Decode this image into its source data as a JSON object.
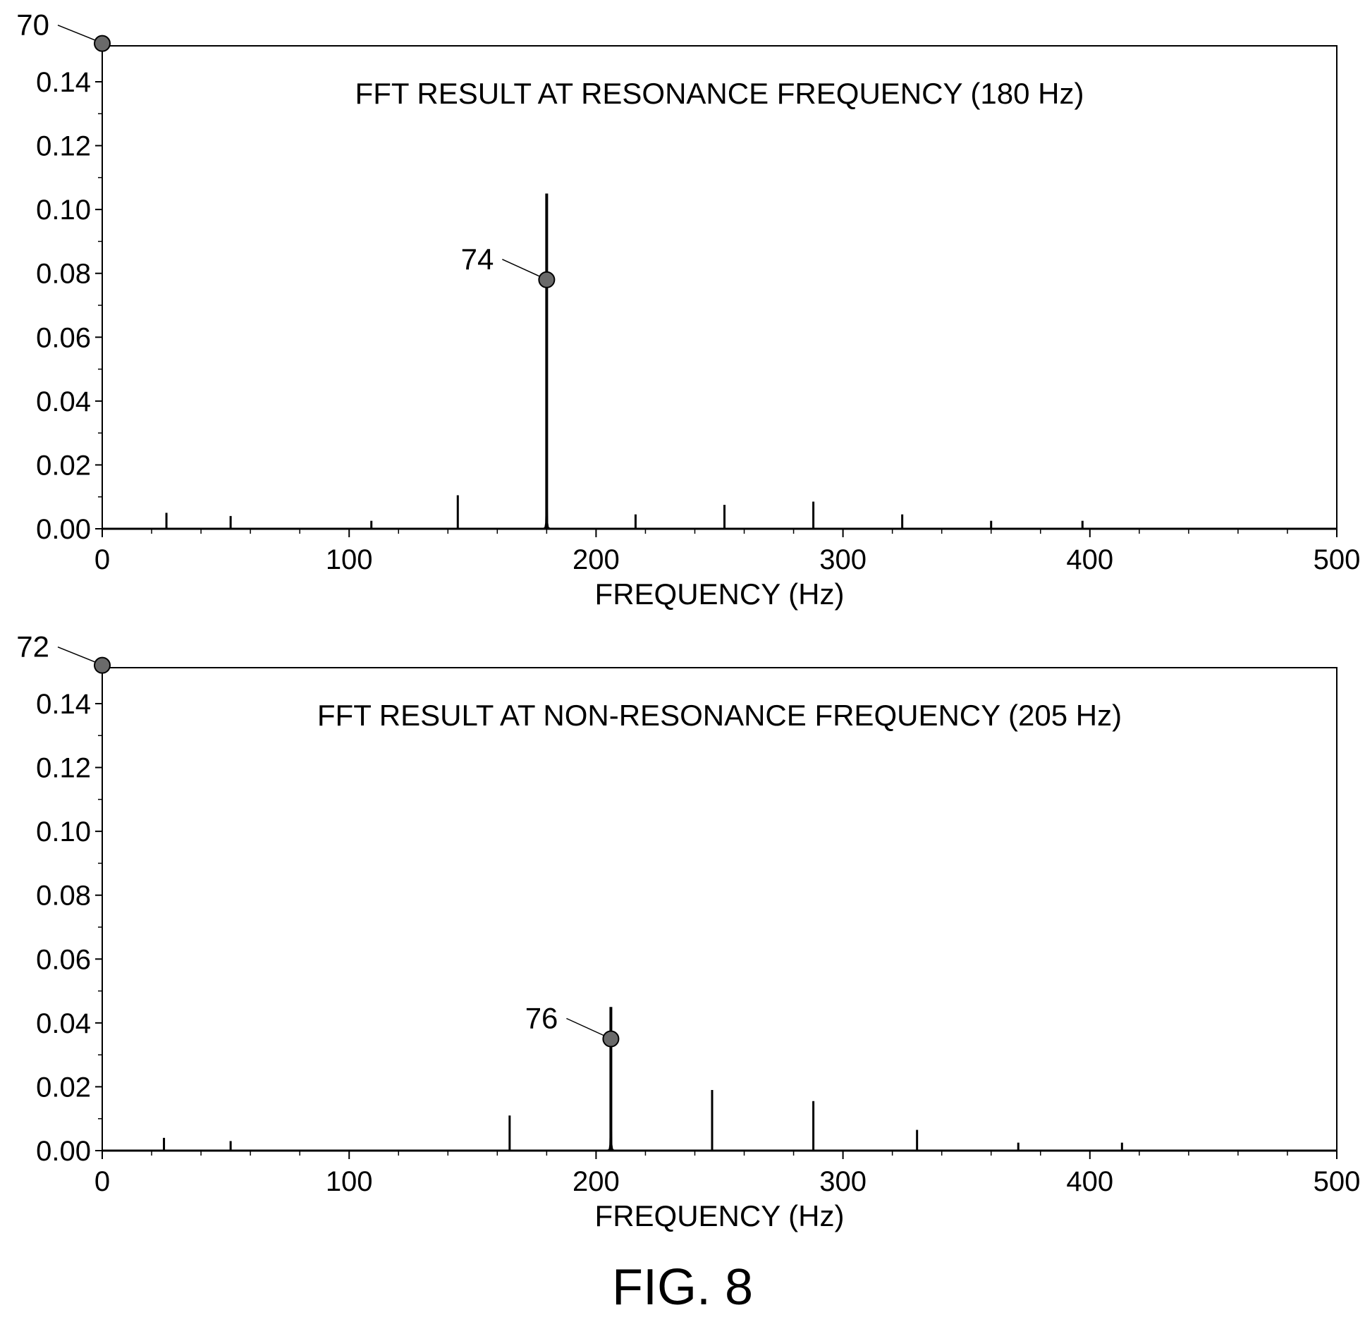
{
  "figure_caption": "FIG. 8",
  "chart_data": [
    {
      "type": "bar",
      "title": "FFT RESULT AT RESONANCE FREQUENCY (180 Hz)",
      "xlabel": "FREQUENCY (Hz)",
      "ylabel": "",
      "xlim": [
        0,
        500
      ],
      "ylim": [
        0,
        0.15
      ],
      "xticks": [
        "0",
        "100",
        "200",
        "300",
        "400",
        "500"
      ],
      "yticks": [
        "0.00",
        "0.02",
        "0.04",
        "0.06",
        "0.08",
        "0.10",
        "0.12",
        "0.14"
      ],
      "grid": false,
      "series": [
        {
          "x": [
            26,
            52,
            109,
            144,
            180,
            216,
            252,
            288,
            324,
            360,
            397
          ],
          "values": [
            0.005,
            0.004,
            0.0025,
            0.0105,
            0.105,
            0.0045,
            0.0075,
            0.0085,
            0.0045,
            0.0025,
            0.0025
          ]
        }
      ],
      "peak_frequency": 180,
      "annotations": [
        {
          "label": "70",
          "x": 0,
          "y": 0.152
        },
        {
          "label": "74",
          "x": 180,
          "y": 0.078
        }
      ]
    },
    {
      "type": "bar",
      "title": "FFT RESULT AT NON-RESONANCE FREQUENCY (205 Hz)",
      "xlabel": "FREQUENCY (Hz)",
      "ylabel": "",
      "xlim": [
        0,
        500
      ],
      "ylim": [
        0,
        0.15
      ],
      "xticks": [
        "0",
        "100",
        "200",
        "300",
        "400",
        "500"
      ],
      "yticks": [
        "0.00",
        "0.02",
        "0.04",
        "0.06",
        "0.08",
        "0.10",
        "0.12",
        "0.14"
      ],
      "grid": false,
      "series": [
        {
          "x": [
            25,
            52,
            165,
            206,
            247,
            288,
            330,
            371,
            413
          ],
          "values": [
            0.004,
            0.003,
            0.011,
            0.045,
            0.019,
            0.0155,
            0.0065,
            0.0025,
            0.0025
          ]
        }
      ],
      "peak_frequency": 206,
      "annotations": [
        {
          "label": "72",
          "x": 0,
          "y": 0.152
        },
        {
          "label": "76",
          "x": 206,
          "y": 0.035
        }
      ]
    }
  ]
}
